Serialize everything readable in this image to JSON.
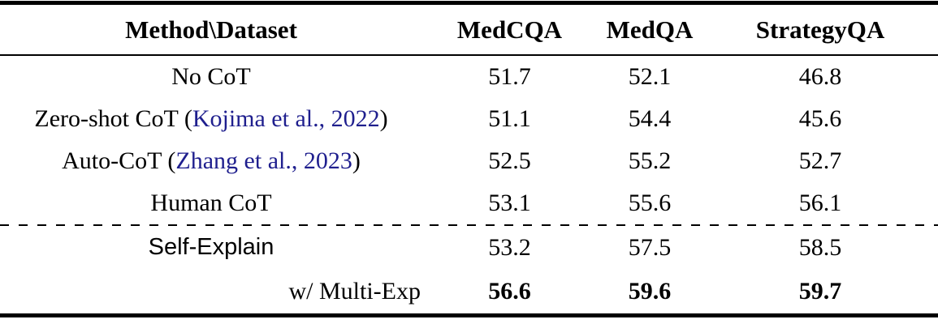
{
  "table": {
    "header": {
      "method_dataset": "Method\\Dataset",
      "columns": [
        "MedCQA",
        "MedQA",
        "StrategyQA"
      ]
    },
    "rows": [
      {
        "method_pre": "No CoT",
        "values": [
          "51.7",
          "52.1",
          "46.8"
        ]
      },
      {
        "method_pre": "Zero-shot CoT (",
        "cite": "Kojima et al., 2022",
        "method_post": ")",
        "values": [
          "51.1",
          "54.4",
          "45.6"
        ]
      },
      {
        "method_pre": "Auto-CoT (",
        "cite": "Zhang et al., 2023",
        "method_post": ")",
        "values": [
          "52.5",
          "55.2",
          "52.7"
        ]
      },
      {
        "method_pre": "Human CoT",
        "values": [
          "53.1",
          "55.6",
          "56.1"
        ]
      },
      {
        "method_pre": "Self-Explain",
        "values": [
          "53.2",
          "57.5",
          "58.5"
        ]
      },
      {
        "method_pre": "w/ Multi-Exp",
        "values": [
          "56.6",
          "59.6",
          "59.7"
        ]
      }
    ],
    "colors": {
      "citation_link": "#1f1f8e",
      "text": "#000000"
    }
  }
}
